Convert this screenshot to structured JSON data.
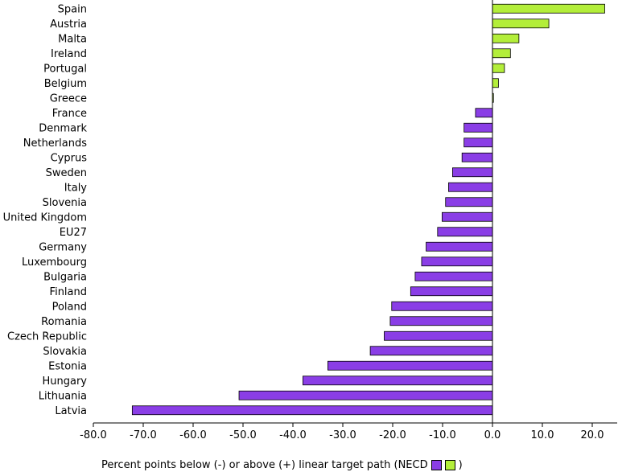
{
  "chart_data": {
    "type": "bar",
    "orientation": "horizontal",
    "categories": [
      "Spain",
      "Austria",
      "Malta",
      "Ireland",
      "Portugal",
      "Belgium",
      "Greece",
      "France",
      "Denmark",
      "Netherlands",
      "Cyprus",
      "Sweden",
      "Italy",
      "Slovenia",
      "United Kingdom",
      "EU27",
      "Germany",
      "Luxembourg",
      "Bulgaria",
      "Finland",
      "Poland",
      "Romania",
      "Czech Republic",
      "Slovakia",
      "Estonia",
      "Hungary",
      "Lithuania",
      "Latvia"
    ],
    "values": [
      22.5,
      11.3,
      5.3,
      3.6,
      2.4,
      1.2,
      0.2,
      -3.4,
      -5.7,
      -5.7,
      -6.1,
      -8.0,
      -8.8,
      -9.4,
      -10.1,
      -11.0,
      -13.3,
      -14.2,
      -15.5,
      -16.4,
      -20.2,
      -20.5,
      -21.7,
      -24.5,
      -33.0,
      -38.0,
      -50.8,
      -72.2
    ],
    "xlim": [
      -80,
      25
    ],
    "xticks": [
      "-80.0",
      "-70.0",
      "-60.0",
      "-50.0",
      "-40.0",
      "-30.0",
      "-20.0",
      "-10.0",
      "0.0",
      "10.0",
      "20.0"
    ],
    "xtick_values": [
      -80,
      -70,
      -60,
      -50,
      -40,
      -30,
      -20,
      -10,
      0,
      10,
      20
    ],
    "colors": {
      "negative": "#8a3ee6",
      "positive": "#b3ee3a",
      "outline": "#000000"
    },
    "legend": {
      "text_before": "Percent points below (-) or above (+) linear target path (NECD",
      "text_after": ")",
      "position": "bottom"
    },
    "grid": false
  }
}
